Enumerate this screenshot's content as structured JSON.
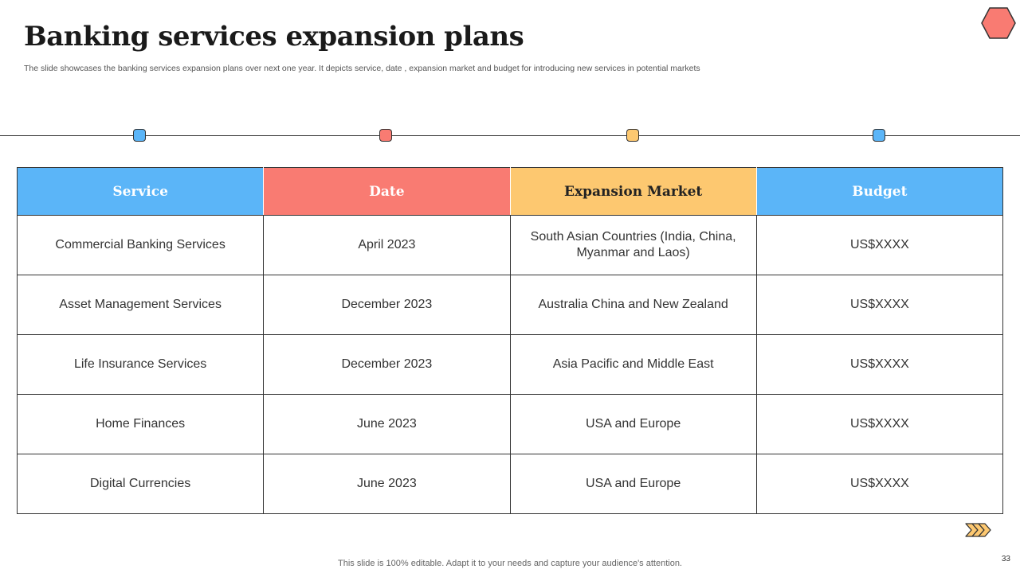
{
  "slide": {
    "title": "Banking services expansion plans",
    "subtitle": "The slide showcases the banking services expansion plans over next one year. It depicts service, date , expansion market and budget for introducing new services in potential markets",
    "footer": "This slide is 100% editable. Adapt it to your needs and capture your audience's attention.",
    "page_number": "33"
  },
  "decor": {
    "corner_icon": "hexagon-icon",
    "nav_icon": "forward-arrows-icon",
    "colors": {
      "blue": "#5bb5f8",
      "red": "#f97b72",
      "yellow": "#fdc870"
    }
  },
  "table": {
    "headers": [
      "Service",
      "Date",
      "Expansion Market",
      "Budget"
    ],
    "rows": [
      {
        "service": "Commercial Banking Services",
        "date": "April 2023",
        "market": "South Asian Countries (India, China, Myanmar and Laos)",
        "budget": "US$XXXX"
      },
      {
        "service": "Asset Management Services",
        "date": "December 2023",
        "market": "Australia China and New Zealand",
        "budget": "US$XXXX"
      },
      {
        "service": "Life Insurance Services",
        "date": "December 2023",
        "market": "Asia Pacific and Middle East",
        "budget": "US$XXXX"
      },
      {
        "service": "Home Finances",
        "date": "June 2023",
        "market": "USA and Europe",
        "budget": "US$XXXX"
      },
      {
        "service": "Digital Currencies",
        "date": "June 2023",
        "market": "USA and Europe",
        "budget": "US$XXXX"
      }
    ]
  }
}
